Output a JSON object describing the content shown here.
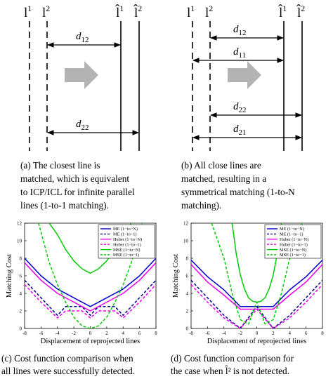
{
  "diagram_a": {
    "labels": {
      "l1": "l",
      "l1_sup": "1",
      "l2": "l",
      "l2_sup": "2",
      "lh1": "l̂",
      "lh1_sup": "1",
      "lh2": "l̂",
      "lh2_sup": "2"
    },
    "distances": [
      {
        "base": "d",
        "sub": "12"
      },
      {
        "base": "d",
        "sub": "22"
      }
    ],
    "caption": [
      "(a)   The   closest   line   is",
      "matched,  which  is  equivalent",
      "to ICP/ICL for infinite parallel",
      "lines (1-to-1 matching)."
    ]
  },
  "diagram_b": {
    "labels": {
      "l1": "l",
      "l1_sup": "1",
      "l2": "l",
      "l2_sup": "2",
      "lh1": "l̂",
      "lh1_sup": "1",
      "lh2": "l̂",
      "lh2_sup": "2"
    },
    "distances": [
      {
        "base": "d",
        "sub": "12"
      },
      {
        "base": "d",
        "sub": "11"
      },
      {
        "base": "d",
        "sub": "22"
      },
      {
        "base": "d",
        "sub": "21"
      }
    ],
    "caption": [
      "(b)   All   close   lines   are",
      "matched,     resulting     in     a",
      "symmetrical matching (1-to-N",
      "matching)."
    ]
  },
  "chart_data": [
    {
      "type": "line",
      "xlabel": "Displacement of reprojected lines",
      "ylabel": "Matching Cost",
      "xlim": [
        -8,
        8
      ],
      "ylim": [
        0,
        12
      ],
      "xticks": [
        "-8",
        "-6",
        "-4",
        "-2",
        "0",
        "2",
        "4",
        "6",
        "8"
      ],
      "yticks": [
        "0",
        "2",
        "4",
        "6",
        "8",
        "10",
        "12"
      ],
      "legend_position": "top-right",
      "series": [
        {
          "name": "ME (1−to−N)",
          "color": "#0000cc",
          "dash": "solid",
          "x": [
            -8,
            -6,
            -4,
            -2,
            0,
            2,
            4,
            6,
            8
          ],
          "y": [
            8.0,
            6.0,
            4.5,
            3.5,
            2.5,
            3.5,
            4.5,
            6.0,
            8.0
          ]
        },
        {
          "name": "ME (1−to−1)",
          "color": "#00008b",
          "dash": "dashed",
          "x": [
            -8,
            -6,
            -4,
            -3,
            -1,
            0,
            1,
            3,
            4,
            6,
            8
          ],
          "y": [
            5.5,
            3.5,
            1.5,
            2.5,
            2.5,
            1.5,
            2.5,
            2.5,
            1.5,
            3.5,
            5.5
          ]
        },
        {
          "name": "Huber (1−to−N)",
          "color": "#ee00ee",
          "dash": "solid",
          "x": [
            -8,
            -6,
            -4,
            -2,
            0,
            2,
            4,
            6,
            8
          ],
          "y": [
            7.5,
            5.5,
            4.0,
            3.0,
            2.0,
            3.0,
            4.0,
            5.5,
            7.5
          ]
        },
        {
          "name": "Huber (1−to−1)",
          "color": "#ee00ee",
          "dash": "dashed",
          "x": [
            -8,
            -6,
            -4,
            -3,
            -1,
            0,
            1,
            3,
            4,
            6,
            8
          ],
          "y": [
            5.0,
            3.0,
            1.2,
            2.0,
            2.0,
            1.2,
            2.0,
            2.0,
            1.2,
            3.0,
            5.0
          ]
        },
        {
          "name": "MSE (1−to−N)",
          "color": "#00cc00",
          "dash": "solid",
          "x": [
            -5.0,
            -4,
            -3,
            -2,
            -1,
            0,
            1,
            2,
            3,
            4,
            5.0
          ],
          "y": [
            12,
            10.7,
            9.0,
            7.7,
            6.8,
            6.3,
            6.8,
            7.7,
            9.0,
            10.7,
            12
          ]
        },
        {
          "name": "MSE (1−to−1)",
          "color": "#00cc00",
          "dash": "dashed",
          "x": [
            -6.3,
            -5,
            -4,
            -3,
            -2,
            -1,
            0,
            1,
            2,
            3,
            4,
            5,
            6.3
          ],
          "y": [
            12,
            7.5,
            5.0,
            3.0,
            1.3,
            0.3,
            0,
            0.3,
            1.3,
            3.0,
            5.0,
            7.5,
            12
          ]
        }
      ],
      "caption": [
        "(c)  Cost  function  comparison  when",
        "all lines were successfully detected."
      ]
    },
    {
      "type": "line",
      "xlabel": "Displacement of reprojected lines",
      "ylabel": "Matching Cost",
      "xlim": [
        -8,
        8
      ],
      "ylim": [
        0,
        12
      ],
      "xticks": [
        "-8",
        "-6",
        "-4",
        "-2",
        "0",
        "2",
        "4",
        "6",
        "8"
      ],
      "yticks": [
        "0",
        "2",
        "4",
        "6",
        "8",
        "10",
        "12"
      ],
      "legend_position": "top-right",
      "series": [
        {
          "name": "ME (1−to−N)",
          "color": "#0000cc",
          "dash": "solid",
          "x": [
            -8,
            -6,
            -4,
            -2,
            0,
            2,
            4,
            6,
            8
          ],
          "y": [
            7.8,
            5.9,
            4.4,
            2.5,
            2.5,
            2.5,
            4.4,
            5.9,
            7.8
          ]
        },
        {
          "name": "ME (1−to−1)",
          "color": "#00008b",
          "dash": "dashed",
          "x": [
            -8,
            -6,
            -4,
            -2,
            0,
            2,
            4,
            6,
            8
          ],
          "y": [
            5.5,
            3.5,
            1.5,
            0,
            2.5,
            0,
            1.5,
            3.5,
            5.5
          ]
        },
        {
          "name": "Huber (1−to−N)",
          "color": "#ee00ee",
          "dash": "solid",
          "x": [
            -8,
            -6,
            -4,
            -2,
            0,
            2,
            4,
            6,
            8
          ],
          "y": [
            7.3,
            5.3,
            3.8,
            2.2,
            2.2,
            2.2,
            3.8,
            5.3,
            7.3
          ]
        },
        {
          "name": "Huber (1−to−1)",
          "color": "#ee00ee",
          "dash": "dashed",
          "x": [
            -8,
            -6,
            -4,
            -2,
            0,
            2,
            4,
            6,
            8
          ],
          "y": [
            5.0,
            3.0,
            1.2,
            0,
            2.2,
            0,
            1.2,
            3.0,
            5.0
          ]
        },
        {
          "name": "MSE (1−to−N)",
          "color": "#00cc00",
          "dash": "solid",
          "x": [
            -3.0,
            -2.5,
            -2,
            -1.5,
            -1,
            -0.5,
            0,
            0.5,
            1,
            1.5,
            2,
            2.5,
            3.0
          ],
          "y": [
            12,
            8.5,
            6.1,
            4.5,
            3.5,
            3.1,
            3.0,
            3.1,
            3.5,
            4.5,
            6.1,
            8.5,
            12
          ]
        },
        {
          "name": "MSE (1−to−1)",
          "color": "#00cc00",
          "dash": "dashed",
          "x": [
            -5.5,
            -4,
            -3,
            -2,
            -1,
            -0.5,
            0,
            0.5,
            1,
            2,
            3,
            4,
            5.5
          ],
          "y": [
            12,
            8,
            4,
            1.0,
            0.5,
            1.8,
            3.0,
            1.8,
            0.5,
            1.0,
            4,
            8,
            12
          ]
        }
      ],
      "caption": [
        "(d)  Cost  function  comparison  for",
        "the case when l̂² is not detected."
      ]
    }
  ]
}
